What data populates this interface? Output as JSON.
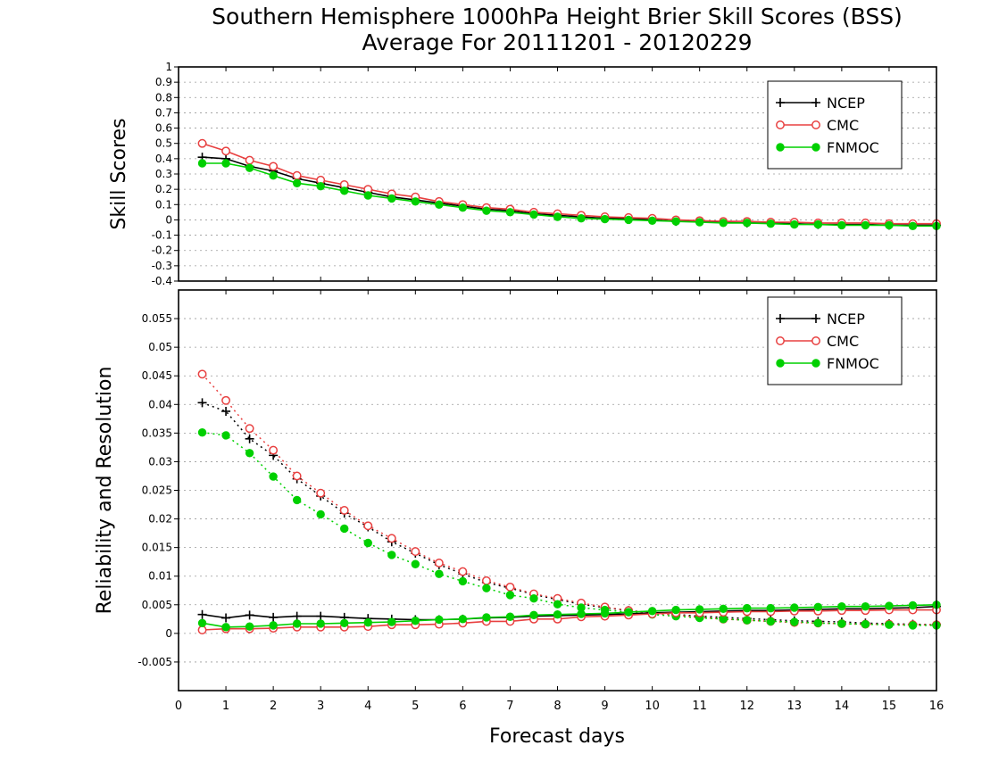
{
  "title_line1": "Southern Hemisphere 1000hPa Height Brier Skill Scores (BSS)",
  "title_line2": "Average For 20111201 - 20120229",
  "xlabel": "Forecast days",
  "colors": {
    "NCEP": "#000000",
    "CMC": "#e84040",
    "FNMOC": "#00d000"
  },
  "chart_data": [
    {
      "type": "line",
      "ylabel": "Skill Scores",
      "xlim": [
        0,
        16
      ],
      "ylim": [
        -0.4,
        1
      ],
      "x_ticks": [
        "0",
        "1",
        "2",
        "3",
        "4",
        "5",
        "6",
        "7",
        "8",
        "9",
        "10",
        "11",
        "12",
        "13",
        "14",
        "15",
        "16"
      ],
      "y_ticks": [
        "-0.4",
        "-0.3",
        "-0.2",
        "-0.1",
        "0",
        "0.1",
        "0.2",
        "0.3",
        "0.4",
        "0.5",
        "0.6",
        "0.7",
        "0.8",
        "0.9",
        "1"
      ],
      "legend": [
        "NCEP",
        "CMC",
        "FNMOC"
      ],
      "legend_position": "top-right",
      "grid": true,
      "x": [
        0.5,
        1,
        1.5,
        2,
        2.5,
        3,
        3.5,
        4,
        4.5,
        5,
        5.5,
        6,
        6.5,
        7,
        7.5,
        8,
        8.5,
        9,
        9.5,
        10,
        10.5,
        11,
        11.5,
        12,
        12.5,
        13,
        13.5,
        14,
        14.5,
        15,
        15.5,
        16
      ],
      "series": [
        {
          "name": "NCEP",
          "style": "solid",
          "marker": "plus",
          "values": [
            0.41,
            0.4,
            0.35,
            0.32,
            0.27,
            0.24,
            0.21,
            0.18,
            0.15,
            0.13,
            0.11,
            0.09,
            0.07,
            0.06,
            0.04,
            0.03,
            0.02,
            0.01,
            0.01,
            0.0,
            -0.01,
            -0.01,
            -0.015,
            -0.02,
            -0.02,
            -0.025,
            -0.03,
            -0.03,
            -0.03,
            -0.035,
            -0.035,
            -0.035
          ]
        },
        {
          "name": "CMC",
          "style": "solid",
          "marker": "circle",
          "values": [
            0.5,
            0.45,
            0.39,
            0.35,
            0.29,
            0.26,
            0.23,
            0.2,
            0.17,
            0.15,
            0.12,
            0.1,
            0.08,
            0.07,
            0.05,
            0.04,
            0.03,
            0.02,
            0.015,
            0.01,
            0.0,
            -0.005,
            -0.01,
            -0.01,
            -0.015,
            -0.015,
            -0.02,
            -0.02,
            -0.02,
            -0.025,
            -0.025,
            -0.025
          ]
        },
        {
          "name": "FNMOC",
          "style": "solid",
          "marker": "dot",
          "values": [
            0.37,
            0.37,
            0.34,
            0.29,
            0.24,
            0.22,
            0.19,
            0.16,
            0.14,
            0.12,
            0.1,
            0.08,
            0.06,
            0.05,
            0.035,
            0.02,
            0.01,
            0.005,
            0.0,
            -0.005,
            -0.01,
            -0.015,
            -0.02,
            -0.02,
            -0.025,
            -0.03,
            -0.03,
            -0.035,
            -0.035,
            -0.035,
            -0.04,
            -0.04
          ]
        }
      ]
    },
    {
      "type": "line",
      "ylabel": "Reliability and Resolution",
      "xlim": [
        0,
        16
      ],
      "ylim": [
        -0.01,
        0.06
      ],
      "x_ticks": [
        "0",
        "1",
        "2",
        "3",
        "4",
        "5",
        "6",
        "7",
        "8",
        "9",
        "10",
        "11",
        "12",
        "13",
        "14",
        "15",
        "16"
      ],
      "y_ticks": [
        "-0.005",
        "0",
        "0.005",
        "0.01",
        "0.015",
        "0.02",
        "0.025",
        "0.03",
        "0.035",
        "0.04",
        "0.045",
        "0.05",
        "0.055"
      ],
      "legend": [
        "NCEP",
        "CMC",
        "FNMOC"
      ],
      "legend_position": "top-right",
      "grid": true,
      "x": [
        0.5,
        1,
        1.5,
        2,
        2.5,
        3,
        3.5,
        4,
        4.5,
        5,
        5.5,
        6,
        6.5,
        7,
        7.5,
        8,
        8.5,
        9,
        9.5,
        10,
        10.5,
        11,
        11.5,
        12,
        12.5,
        13,
        13.5,
        14,
        14.5,
        15,
        15.5,
        16
      ],
      "series": [
        {
          "name": "NCEP",
          "metric": "reliability",
          "style": "solid",
          "marker": "plus",
          "values": [
            0.0033,
            0.0027,
            0.0032,
            0.0028,
            0.003,
            0.003,
            0.0028,
            0.0026,
            0.0025,
            0.0024,
            0.0024,
            0.0025,
            0.0027,
            0.0028,
            0.003,
            0.0031,
            0.0032,
            0.0033,
            0.0034,
            0.0036,
            0.0037,
            0.0038,
            0.0039,
            0.004,
            0.004,
            0.0041,
            0.0042,
            0.0043,
            0.0043,
            0.0044,
            0.0045,
            0.0047
          ]
        },
        {
          "name": "NCEP",
          "metric": "resolution",
          "style": "dotted",
          "marker": "plus",
          "values": [
            0.0403,
            0.0388,
            0.034,
            0.0311,
            0.027,
            0.024,
            0.021,
            0.0186,
            0.016,
            0.014,
            0.012,
            0.0104,
            0.0089,
            0.0079,
            0.0068,
            0.0059,
            0.0051,
            0.0045,
            0.004,
            0.0036,
            0.0033,
            0.003,
            0.0028,
            0.0026,
            0.0024,
            0.0022,
            0.0021,
            0.002,
            0.0018,
            0.0017,
            0.0016,
            0.0015
          ]
        },
        {
          "name": "CMC",
          "metric": "reliability",
          "style": "solid",
          "marker": "circle",
          "values": [
            0.0006,
            0.0008,
            0.0008,
            0.0009,
            0.0011,
            0.0011,
            0.0011,
            0.0012,
            0.0015,
            0.0015,
            0.0016,
            0.0018,
            0.0021,
            0.0021,
            0.0025,
            0.0025,
            0.0029,
            0.003,
            0.0032,
            0.0034,
            0.0036,
            0.0036,
            0.0037,
            0.0038,
            0.0038,
            0.0039,
            0.0039,
            0.004,
            0.004,
            0.0041,
            0.0041,
            0.0041
          ]
        },
        {
          "name": "CMC",
          "metric": "resolution",
          "style": "dotted",
          "marker": "circle",
          "values": [
            0.0453,
            0.0407,
            0.0358,
            0.032,
            0.0275,
            0.0245,
            0.0215,
            0.0188,
            0.0166,
            0.0143,
            0.0123,
            0.0108,
            0.0092,
            0.0081,
            0.0069,
            0.0061,
            0.0053,
            0.0046,
            0.004,
            0.0035,
            0.0032,
            0.0028,
            0.0025,
            0.0023,
            0.0021,
            0.0019,
            0.0018,
            0.0017,
            0.0016,
            0.0016,
            0.0015,
            0.0015
          ]
        },
        {
          "name": "FNMOC",
          "metric": "reliability",
          "style": "solid",
          "marker": "dot",
          "values": [
            0.0018,
            0.0011,
            0.0012,
            0.0014,
            0.0017,
            0.0017,
            0.0018,
            0.0019,
            0.002,
            0.0022,
            0.0024,
            0.0025,
            0.0028,
            0.0029,
            0.0032,
            0.0033,
            0.0034,
            0.0035,
            0.0037,
            0.0039,
            0.0041,
            0.0042,
            0.0043,
            0.0044,
            0.0044,
            0.0045,
            0.0046,
            0.0047,
            0.0047,
            0.0048,
            0.0049,
            0.005
          ]
        },
        {
          "name": "FNMOC",
          "metric": "resolution",
          "style": "dotted",
          "marker": "dot",
          "values": [
            0.0351,
            0.0346,
            0.0315,
            0.0274,
            0.0233,
            0.0208,
            0.0183,
            0.0158,
            0.0137,
            0.0121,
            0.0104,
            0.0091,
            0.0079,
            0.0067,
            0.0061,
            0.0051,
            0.0045,
            0.0041,
            0.0037,
            0.0033,
            0.003,
            0.0027,
            0.0025,
            0.0023,
            0.0021,
            0.002,
            0.0018,
            0.0017,
            0.0016,
            0.0015,
            0.0014,
            0.0014
          ]
        }
      ]
    }
  ]
}
